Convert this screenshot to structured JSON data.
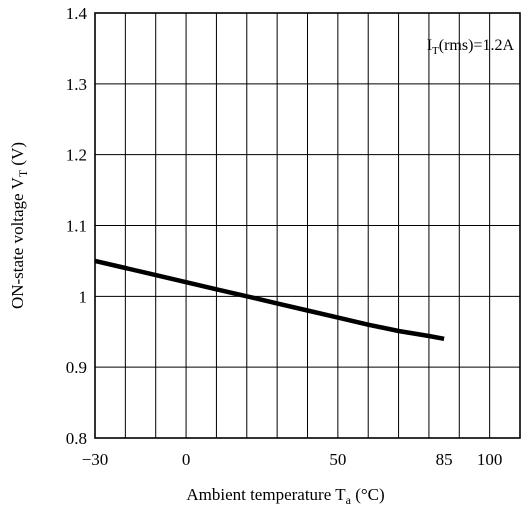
{
  "chart_data": {
    "type": "line",
    "title": "",
    "xlabel": "Ambient temperature",
    "xlabel_sub": "a",
    "xlabel_base": "T",
    "xlabel_unit": "(°C)",
    "ylabel": "ON-state voltage",
    "ylabel_base": "V",
    "ylabel_sub": "T",
    "ylabel_unit": "(V)",
    "xlim": [
      -30,
      110
    ],
    "ylim": [
      0.8,
      1.4
    ],
    "x_ticks": [
      {
        "value": -30,
        "label": "−30"
      },
      {
        "value": 0,
        "label": "0"
      },
      {
        "value": 50,
        "label": "50"
      },
      {
        "value": 85,
        "label": "85"
      },
      {
        "value": 100,
        "label": "100"
      }
    ],
    "y_ticks": [
      {
        "value": 0.8,
        "label": "0.8"
      },
      {
        "value": 0.9,
        "label": "0.9"
      },
      {
        "value": 1.0,
        "label": "1"
      },
      {
        "value": 1.1,
        "label": "1.1"
      },
      {
        "value": 1.2,
        "label": "1.2"
      },
      {
        "value": 1.3,
        "label": "1.3"
      },
      {
        "value": 1.4,
        "label": "1.4"
      }
    ],
    "x_gridlines": [
      -20,
      -10,
      0,
      10,
      20,
      30,
      40,
      50,
      60,
      70,
      80,
      90,
      100
    ],
    "y_gridlines": [
      0.9,
      1.0,
      1.1,
      1.2,
      1.3
    ],
    "grid": true,
    "annotation": {
      "base": "I",
      "sub": "T",
      "rest": "(rms)=1.2A"
    },
    "series": [
      {
        "x": [
          -30,
          -20,
          -10,
          0,
          10,
          20,
          30,
          40,
          50,
          60,
          70,
          80,
          85
        ],
        "y": [
          1.05,
          1.04,
          1.03,
          1.02,
          1.01,
          1.0,
          0.99,
          0.98,
          0.97,
          0.96,
          0.951,
          0.944,
          0.94
        ]
      }
    ]
  }
}
